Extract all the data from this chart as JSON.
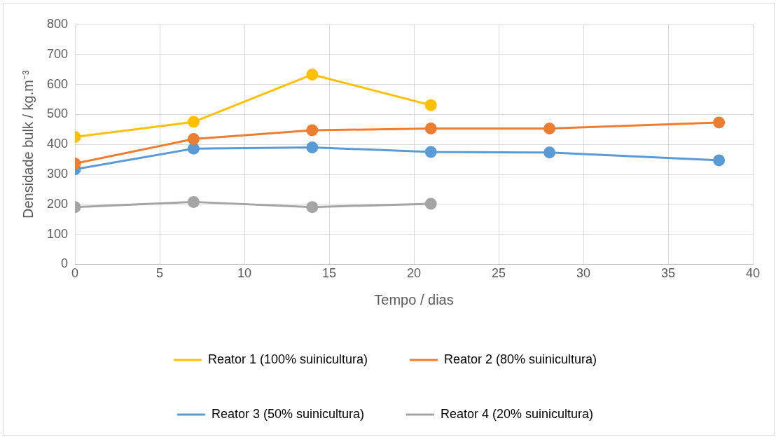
{
  "chart_data": {
    "type": "line",
    "xlabel": "Tempo / dias",
    "ylabel": "Densidade bulk / kg.m⁻³",
    "xlim": [
      0,
      40
    ],
    "xticks": [
      0,
      5,
      10,
      15,
      20,
      25,
      30,
      35,
      40
    ],
    "ylim": [
      0,
      800
    ],
    "yticks": [
      0,
      100,
      200,
      300,
      400,
      500,
      600,
      700,
      800
    ],
    "grid": true,
    "legend": "bottom",
    "marker": "circle",
    "line_style": "solid",
    "series": [
      {
        "name": "Reator 1 (100% suinicultura)",
        "color": "#ffc000",
        "x": [
          0,
          7,
          14,
          21
        ],
        "values": [
          425,
          475,
          633,
          531
        ]
      },
      {
        "name": "Reator 2 (80% suinicultura)",
        "color": "#ed7d31",
        "x": [
          0,
          7,
          14,
          21,
          28,
          38
        ],
        "values": [
          336,
          418,
          447,
          453,
          453,
          473
        ]
      },
      {
        "name": "Reator 3 (50% suinicultura)",
        "color": "#5b9bd5",
        "x": [
          0,
          7,
          14,
          21,
          28,
          38
        ],
        "values": [
          317,
          386,
          390,
          375,
          373,
          347
        ]
      },
      {
        "name": "Reator 4 (20% suinicultura)",
        "color": "#a5a5a5",
        "x": [
          0,
          7,
          14,
          21
        ],
        "values": [
          191,
          208,
          191,
          202
        ]
      }
    ]
  }
}
